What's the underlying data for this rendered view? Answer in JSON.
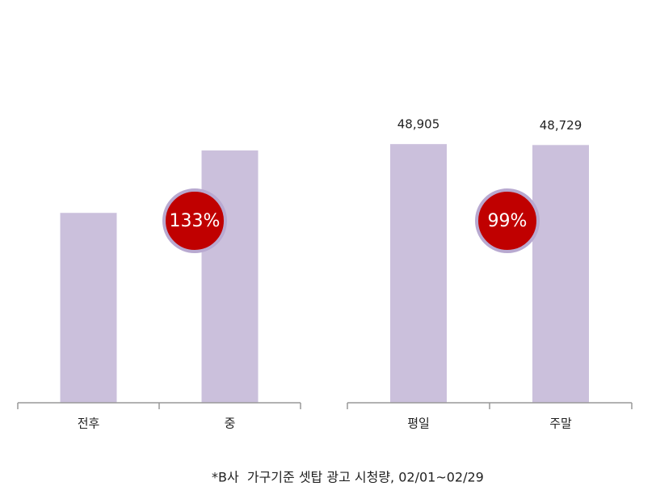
{
  "chart_data": [
    {
      "type": "bar",
      "categories": [
        "전후",
        "중"
      ],
      "values": [
        35900,
        47700
      ],
      "color": "#cbc0dc",
      "ylim": [
        0,
        50000
      ],
      "annotation": "133%"
    },
    {
      "type": "bar",
      "categories": [
        "평일",
        "주말"
      ],
      "values": [
        48905,
        48729
      ],
      "value_labels": [
        "48,905",
        "48,729"
      ],
      "color": "#cbc0dc",
      "ylim": [
        0,
        50000
      ],
      "annotation": "99%"
    }
  ],
  "footnote": "*B사  가구기준 셋탑 광고 시청량, 02/01~02/29"
}
